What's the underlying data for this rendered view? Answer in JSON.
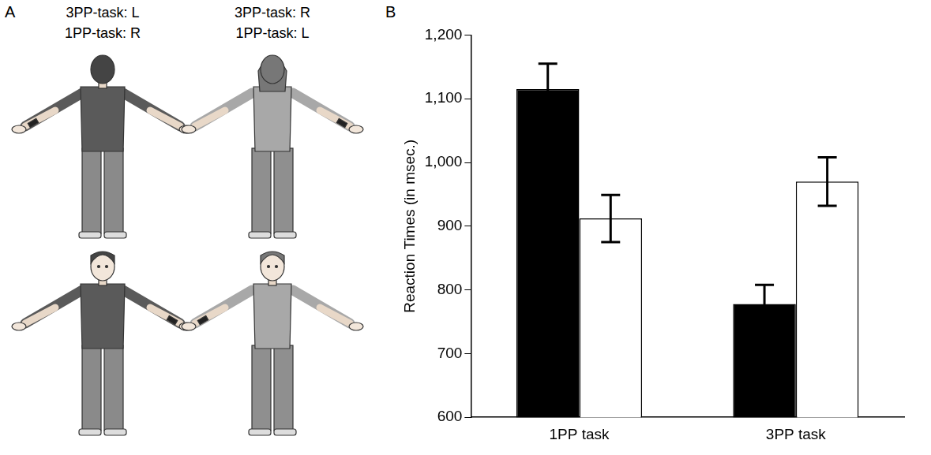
{
  "panel_letters": [
    "A",
    "B"
  ],
  "figure_labels": [
    [
      "3PP-task: L",
      "1PP-task: R"
    ],
    [
      "3PP-task: R",
      "1PP-task: L"
    ]
  ],
  "chart_data": {
    "type": "bar",
    "categories": [
      "1PP task",
      "3PP task"
    ],
    "y_label": "Reaction Times (in msec.)",
    "series": [
      {
        "color": "#000000",
        "values": [
          1115,
          778
        ],
        "errors": [
          40,
          30
        ]
      },
      {
        "color": "#ffffff",
        "values": [
          912,
          970
        ],
        "errors": [
          37,
          38
        ]
      }
    ],
    "ylim": [
      600,
      1200
    ],
    "yticks": [
      600,
      700,
      800,
      900,
      {
        "value": 1000,
        "label": "1,000"
      },
      {
        "value": 1100,
        "label": "1,100"
      },
      {
        "value": 1200,
        "label": "1,200"
      }
    ],
    "grid": false
  }
}
